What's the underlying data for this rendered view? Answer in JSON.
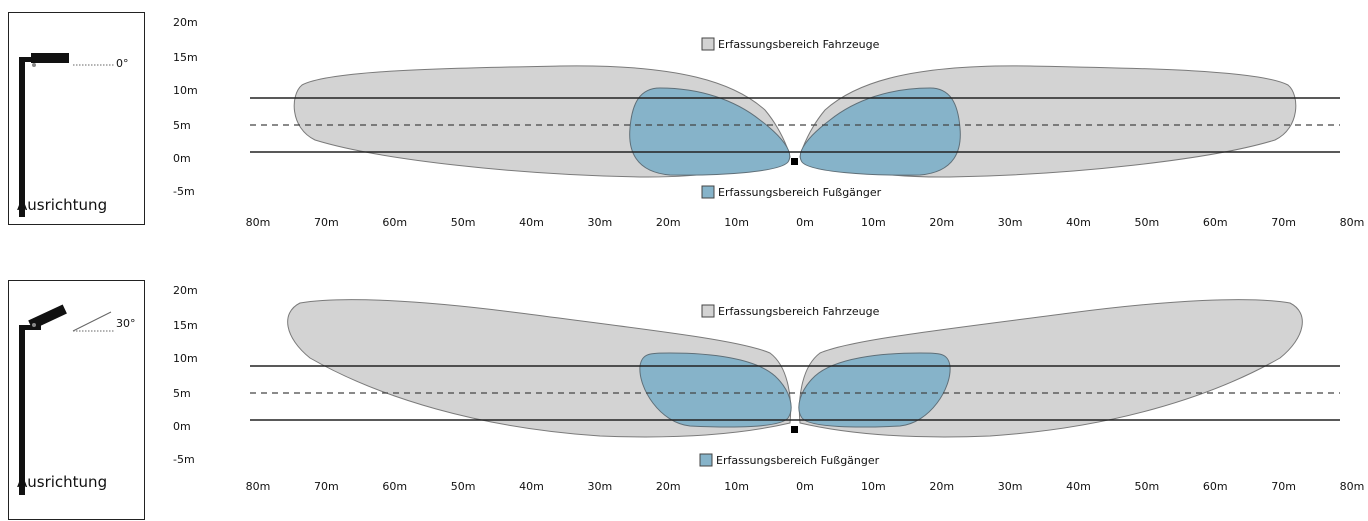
{
  "panels": [
    {
      "orientation_label": "Ausrichtung",
      "angle_label": "0°",
      "legend_vehicles": "Erfassungsbereich Fahrzeuge",
      "legend_pedestrians": "Erfassungsbereich Fußgänger",
      "y_ticks": [
        "20m",
        "15m",
        "10m",
        "5m",
        "0m",
        "-5m"
      ],
      "x_ticks": [
        "80m",
        "70m",
        "60m",
        "50m",
        "40m",
        "30m",
        "20m",
        "10m",
        "0m",
        "10m",
        "20m",
        "30m",
        "40m",
        "50m",
        "60m",
        "70m",
        "80m"
      ]
    },
    {
      "orientation_label": "Ausrichtung",
      "angle_label": "30°",
      "legend_vehicles": "Erfassungsbereich Fahrzeuge",
      "legend_pedestrians": "Erfassungsbereich Fußgänger",
      "y_ticks": [
        "20m",
        "15m",
        "10m",
        "5m",
        "0m",
        "-5m"
      ],
      "x_ticks": [
        "80m",
        "70m",
        "60m",
        "50m",
        "40m",
        "30m",
        "20m",
        "10m",
        "0m",
        "10m",
        "20m",
        "30m",
        "40m",
        "50m",
        "60m",
        "70m",
        "80m"
      ]
    }
  ],
  "colors": {
    "vehicle_zone": "#d3d3d3",
    "pedestrian_zone": "#86b3c9",
    "outline": "#7a7a7a",
    "lines": "#222222"
  }
}
